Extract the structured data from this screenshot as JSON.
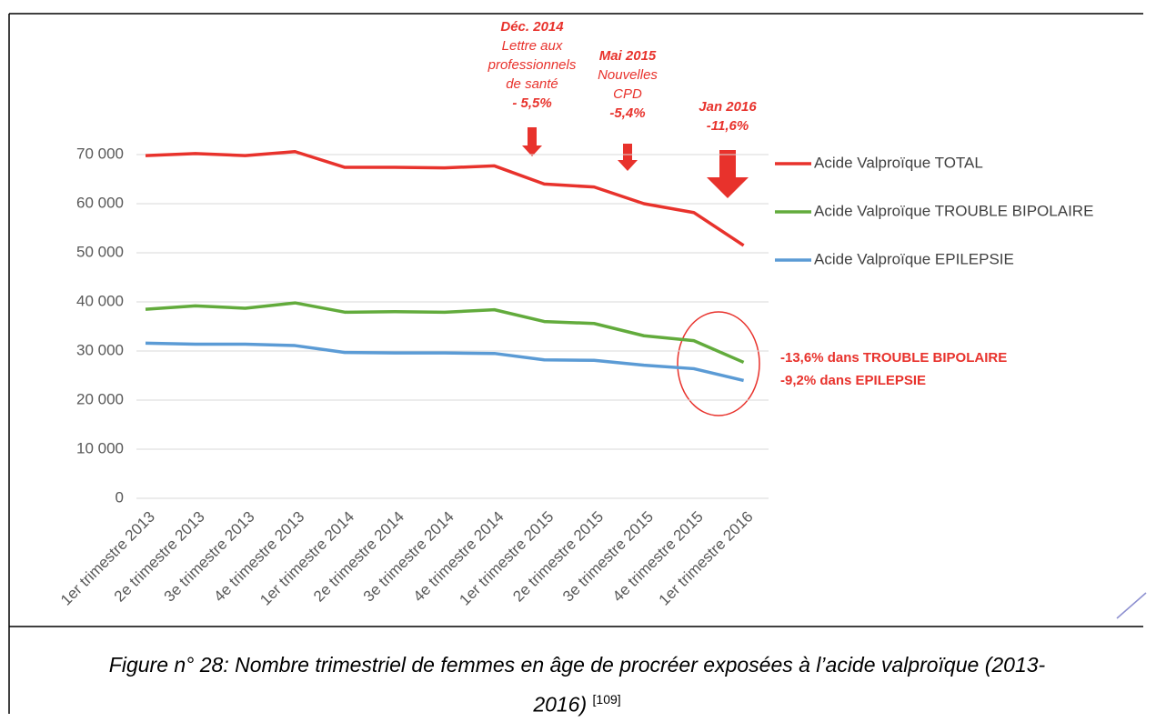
{
  "chart_data": {
    "type": "line",
    "categories": [
      "1er trimestre 2013",
      "2e trimestre 2013",
      "3e trimestre 2013",
      "4e trimestre 2013",
      "1er trimestre 2014",
      "2e trimestre 2014",
      "3e trimestre 2014",
      "4e trimestre 2014",
      "1er trimestre 2015",
      "2e trimestre 2015",
      "3e trimestre 2015",
      "4e trimestre 2015",
      "1er trimestre 2016"
    ],
    "series": [
      {
        "name": "Acide Valproïque TOTAL",
        "color": "#e8322c",
        "values": [
          69800,
          70200,
          69800,
          70600,
          67400,
          67400,
          67300,
          67700,
          64000,
          63400,
          60000,
          58200,
          51500
        ]
      },
      {
        "name": "Acide Valproïque TROUBLE BIPOLAIRE",
        "color": "#62ab3c",
        "values": [
          38500,
          39200,
          38700,
          39800,
          37900,
          38000,
          37900,
          38400,
          36000,
          35600,
          33100,
          32100,
          27700
        ]
      },
      {
        "name": "Acide Valproïque EPILEPSIE",
        "color": "#5b9bd5",
        "values": [
          31600,
          31400,
          31400,
          31100,
          29700,
          29600,
          29600,
          29500,
          28200,
          28100,
          27100,
          26400,
          24000
        ]
      }
    ],
    "ylim": [
      0,
      70000
    ],
    "yticks": [
      0,
      {
        "value": 10000,
        "label": "10 000"
      },
      {
        "value": 20000,
        "label": "20 000"
      },
      {
        "value": 30000,
        "label": "30 000"
      },
      {
        "value": 40000,
        "label": "40 000"
      },
      {
        "value": 50000,
        "label": "50 000"
      },
      {
        "value": 60000,
        "label": "60 000"
      },
      {
        "value": 70000,
        "label": "70 000"
      }
    ],
    "grid": true,
    "legend": "right",
    "annotations": [
      {
        "lines": [
          "Déc. 2014",
          "Lettre aux",
          "professionnels",
          "de santé",
          "- 5,5%"
        ]
      },
      {
        "lines": [
          "Mai 2015",
          "Nouvelles",
          "CPD",
          "-5,4%"
        ]
      },
      {
        "lines": [
          "Jan 2016",
          "-11,6%"
        ]
      }
    ],
    "notes": [
      "-13,6% dans TROUBLE BIPOLAIRE",
      "-9,2% dans EPILEPSIE"
    ]
  },
  "caption": {
    "text": [
      "Figure n° 28: Nombre trimestriel de femmes en âge de procréer exposées à l’acide valproïque (2013-",
      "2016)"
    ],
    "reference": "[109]"
  }
}
